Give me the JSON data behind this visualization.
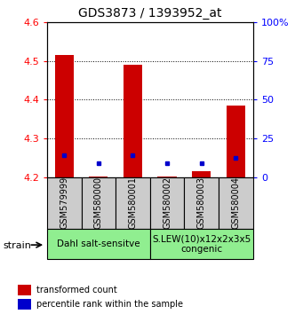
{
  "title": "GDS3873 / 1393952_at",
  "samples": [
    "GSM579999",
    "GSM580000",
    "GSM580001",
    "GSM580002",
    "GSM580003",
    "GSM580004"
  ],
  "red_values": [
    4.516,
    4.202,
    4.491,
    4.202,
    4.215,
    4.385
  ],
  "blue_values": [
    4.258,
    4.236,
    4.258,
    4.236,
    4.236,
    4.25
  ],
  "red_base": 4.2,
  "ylim": [
    4.2,
    4.6
  ],
  "yticks_left": [
    4.2,
    4.3,
    4.4,
    4.5,
    4.6
  ],
  "yticks_right": [
    0,
    25,
    50,
    75,
    100
  ],
  "right_ylim": [
    0,
    100
  ],
  "groups": [
    {
      "label": "Dahl salt-sensitve",
      "start": 0,
      "end": 3,
      "color": "#90EE90"
    },
    {
      "label": "S.LEW(10)x12x2x3x5\ncongenic",
      "start": 3,
      "end": 6,
      "color": "#90EE90"
    }
  ],
  "strain_label": "strain",
  "legend1": "transformed count",
  "legend2": "percentile rank within the sample",
  "bar_width": 0.55,
  "red_color": "#CC0000",
  "blue_color": "#0000CC",
  "bg_color": "#CCCCCC",
  "title_fontsize": 10,
  "tick_fontsize": 8,
  "label_fontsize": 7,
  "group_fontsize": 7.5,
  "legend_fontsize": 7
}
